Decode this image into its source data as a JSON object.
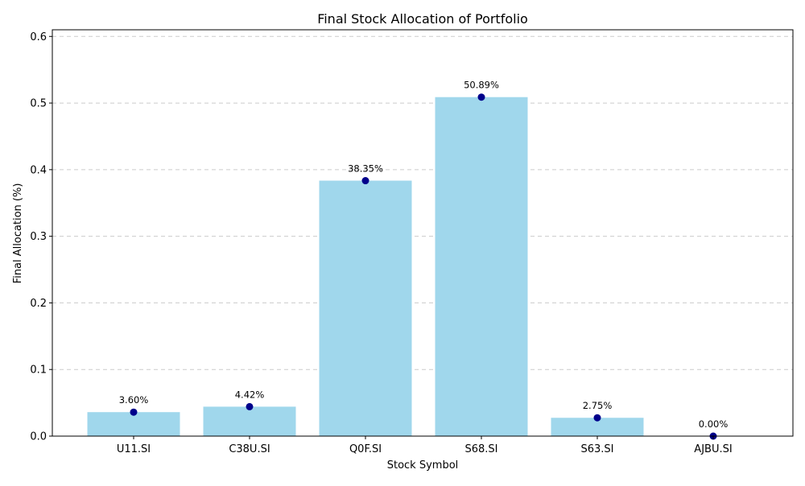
{
  "chart_data": {
    "type": "bar",
    "title": "Final Stock Allocation of Portfolio",
    "xlabel": "Stock Symbol",
    "ylabel": "Final Allocation (%)",
    "categories": [
      "U11.SI",
      "C38U.SI",
      "Q0F.SI",
      "S68.SI",
      "S63.SI",
      "AJBU.SI"
    ],
    "values": [
      0.036,
      0.0442,
      0.3835,
      0.5089,
      0.0275,
      0.0
    ],
    "data_labels": [
      "3.60%",
      "4.42%",
      "38.35%",
      "50.89%",
      "2.75%",
      "0.00%"
    ],
    "yticks": [
      "0.0",
      "0.1",
      "0.2",
      "0.3",
      "0.4",
      "0.5",
      "0.6"
    ],
    "ylim": [
      0,
      0.61
    ],
    "grid": "y-dashed",
    "bar_color": "#a0d7ec",
    "marker_color": "#00008b"
  }
}
